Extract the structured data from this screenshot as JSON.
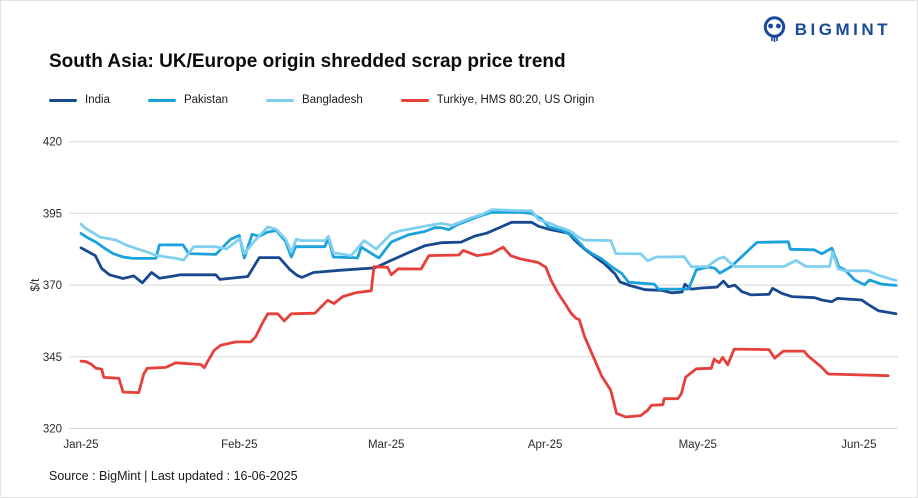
{
  "header": {
    "logo_text": "BIGMINT"
  },
  "footer": {
    "source_line": "Source : BigMint | Last updated : 16-06-2025"
  },
  "chart_data": {
    "type": "line",
    "title": "South Asia: UK/Europe origin shredded scrap price trend",
    "ylabel": "$/t",
    "ylim": [
      320,
      430
    ],
    "y_ticks": [
      420,
      395,
      370,
      345,
      320
    ],
    "grid": "horizontal",
    "legend_position": "top-left",
    "x_unit": "trading-day index from 01-Jan-2025",
    "x_ticks": [
      {
        "d": 0,
        "label": "Jan-25"
      },
      {
        "d": 22.2,
        "label": "Feb-25"
      },
      {
        "d": 42.8,
        "label": "Mar-25"
      },
      {
        "d": 65.1,
        "label": "Apr-25"
      },
      {
        "d": 86.5,
        "label": "May-25"
      },
      {
        "d": 109.1,
        "label": "Jun-25"
      }
    ],
    "series": [
      {
        "name": "India",
        "color": "#17498f",
        "points": [
          [
            0,
            383
          ],
          [
            2,
            380.3
          ],
          [
            2.9,
            375.8
          ],
          [
            4,
            373.6
          ],
          [
            5.9,
            372.3
          ],
          [
            7.4,
            373.2
          ],
          [
            8.6,
            370.8
          ],
          [
            9.9,
            374.4
          ],
          [
            11,
            372.4
          ],
          [
            12.6,
            373
          ],
          [
            14,
            373.6
          ],
          [
            18.9,
            373.6
          ],
          [
            19.5,
            372
          ],
          [
            23.4,
            373
          ],
          [
            25,
            379.6
          ],
          [
            27.8,
            379.6
          ],
          [
            29.3,
            375.4
          ],
          [
            30.3,
            373.4
          ],
          [
            31,
            372.7
          ],
          [
            32.6,
            374.4
          ],
          [
            36.5,
            375.2
          ],
          [
            41.2,
            376
          ],
          [
            43.5,
            378.6
          ],
          [
            46,
            381.4
          ],
          [
            48.2,
            383.7
          ],
          [
            50.5,
            384.8
          ],
          [
            53.3,
            385
          ],
          [
            55.2,
            387.1
          ],
          [
            56.9,
            388.1
          ],
          [
            59,
            390.4
          ],
          [
            60.4,
            391.9
          ],
          [
            63.2,
            391.9
          ],
          [
            64.2,
            390.5
          ],
          [
            65.6,
            389.5
          ],
          [
            67,
            388.8
          ],
          [
            68.4,
            388.1
          ],
          [
            69.2,
            385.8
          ],
          [
            70.6,
            382.6
          ],
          [
            72.1,
            379.8
          ],
          [
            73.4,
            377.5
          ],
          [
            74.9,
            373.9
          ],
          [
            75.6,
            371.1
          ],
          [
            76.8,
            370
          ],
          [
            79.1,
            368.4
          ],
          [
            81.4,
            368.2
          ],
          [
            82.8,
            367.3
          ],
          [
            84.3,
            367.6
          ],
          [
            84.7,
            370.3
          ],
          [
            85.6,
            368.6
          ],
          [
            87.1,
            369
          ],
          [
            89.2,
            369.3
          ],
          [
            90.1,
            371.4
          ],
          [
            90.8,
            369.4
          ],
          [
            91.7,
            370
          ],
          [
            92.7,
            367.7
          ],
          [
            94,
            366.6
          ],
          [
            96.5,
            366.8
          ],
          [
            97,
            368.9
          ],
          [
            98.3,
            367.1
          ],
          [
            99.7,
            366
          ],
          [
            102.9,
            365.6
          ],
          [
            103.9,
            364.8
          ],
          [
            105.3,
            364.2
          ],
          [
            106.1,
            365.4
          ],
          [
            107.1,
            365.2
          ],
          [
            109.5,
            364.8
          ],
          [
            110.5,
            363.1
          ],
          [
            111.9,
            361
          ],
          [
            112.7,
            360.7
          ],
          [
            114.3,
            360
          ]
        ]
      },
      {
        "name": "Pakistan",
        "color": "#1ba2dc",
        "points": [
          [
            0,
            388
          ],
          [
            0.8,
            386.7
          ],
          [
            2.1,
            385
          ],
          [
            3.4,
            382.7
          ],
          [
            4.5,
            381
          ],
          [
            5.9,
            379.8
          ],
          [
            7.3,
            379.3
          ],
          [
            10.5,
            379.3
          ],
          [
            11,
            384
          ],
          [
            14.3,
            384
          ],
          [
            15.1,
            381
          ],
          [
            18.9,
            380.7
          ],
          [
            21,
            386
          ],
          [
            22.2,
            387.3
          ],
          [
            22.9,
            379.5
          ],
          [
            24,
            387.7
          ],
          [
            25,
            387
          ],
          [
            26.2,
            388.5
          ],
          [
            27.4,
            389
          ],
          [
            28.7,
            385.2
          ],
          [
            29.5,
            379.8
          ],
          [
            30.1,
            383.4
          ],
          [
            34.2,
            383.4
          ],
          [
            34.7,
            386.4
          ],
          [
            35.4,
            379.8
          ],
          [
            38.8,
            379.5
          ],
          [
            39.3,
            383.3
          ],
          [
            41.2,
            380.3
          ],
          [
            41.8,
            379.5
          ],
          [
            43.5,
            385
          ],
          [
            46,
            387.6
          ],
          [
            48.2,
            388.7
          ],
          [
            49.6,
            390
          ],
          [
            50.5,
            390
          ],
          [
            51.6,
            389.3
          ],
          [
            52.7,
            391
          ],
          [
            54.8,
            393
          ],
          [
            56.2,
            394.3
          ],
          [
            57.6,
            395.4
          ],
          [
            61.8,
            395.4
          ],
          [
            63.2,
            395
          ],
          [
            64.6,
            393
          ],
          [
            65.6,
            390.3
          ],
          [
            67.4,
            389.1
          ],
          [
            68.8,
            387.4
          ],
          [
            69.8,
            385.1
          ],
          [
            70.6,
            382.8
          ],
          [
            71.6,
            381.1
          ],
          [
            73,
            379.2
          ],
          [
            74.4,
            376.4
          ],
          [
            75.8,
            374.1
          ],
          [
            76.8,
            371
          ],
          [
            80.4,
            370.3
          ],
          [
            81,
            368.6
          ],
          [
            85.2,
            368.6
          ],
          [
            86.3,
            375.3
          ],
          [
            88,
            376.3
          ],
          [
            88.9,
            375.9
          ],
          [
            89.6,
            374.2
          ],
          [
            91.2,
            376.5
          ],
          [
            93.8,
            382.6
          ],
          [
            94.8,
            384.9
          ],
          [
            99.2,
            385.1
          ],
          [
            99.5,
            382.5
          ],
          [
            102.8,
            382.3
          ],
          [
            103.9,
            380.9
          ],
          [
            105.3,
            382.9
          ],
          [
            106.3,
            376.3
          ],
          [
            107.1,
            375.4
          ],
          [
            108.5,
            371.8
          ],
          [
            109.5,
            370.6
          ],
          [
            109.9,
            370.1
          ],
          [
            110.6,
            371.8
          ],
          [
            112.3,
            370.3
          ],
          [
            114.3,
            369.9
          ]
        ]
      },
      {
        "name": "Bangladesh",
        "color": "#7fd0f0",
        "points": [
          [
            0,
            391.3
          ],
          [
            0.4,
            390.2
          ],
          [
            1.5,
            388.5
          ],
          [
            2.7,
            386.7
          ],
          [
            3.9,
            386.2
          ],
          [
            5,
            385.6
          ],
          [
            6.4,
            383.9
          ],
          [
            7.8,
            382.7
          ],
          [
            9.2,
            381.6
          ],
          [
            10.5,
            380.4
          ],
          [
            12,
            379.8
          ],
          [
            13.3,
            379.3
          ],
          [
            14.4,
            378.7
          ],
          [
            15.8,
            383.4
          ],
          [
            18.9,
            383.4
          ],
          [
            20.4,
            382.6
          ],
          [
            22.3,
            386.2
          ],
          [
            22.9,
            381
          ],
          [
            24.2,
            385
          ],
          [
            26.2,
            390.3
          ],
          [
            27.4,
            389.4
          ],
          [
            28.7,
            386
          ],
          [
            29.5,
            381.5
          ],
          [
            30.2,
            386
          ],
          [
            30.9,
            385.5
          ],
          [
            34.2,
            385.5
          ],
          [
            34.7,
            387
          ],
          [
            35.4,
            381.3
          ],
          [
            37.9,
            380.3
          ],
          [
            39.7,
            385.5
          ],
          [
            41.4,
            382.6
          ],
          [
            43.5,
            387.9
          ],
          [
            44.9,
            389
          ],
          [
            48.2,
            390.5
          ],
          [
            50.5,
            391.5
          ],
          [
            52,
            390.8
          ],
          [
            54.8,
            393.5
          ],
          [
            56.2,
            394.6
          ],
          [
            57.6,
            396.3
          ],
          [
            61,
            396
          ],
          [
            63.2,
            395.9
          ],
          [
            64.2,
            392.8
          ],
          [
            65,
            392.1
          ],
          [
            65.9,
            391.4
          ],
          [
            66.9,
            390.3
          ],
          [
            67.8,
            389.7
          ],
          [
            68.8,
            388.6
          ],
          [
            69.7,
            386.8
          ],
          [
            70.6,
            385.7
          ],
          [
            74.3,
            385.5
          ],
          [
            75,
            381
          ],
          [
            78.5,
            380.9
          ],
          [
            79.5,
            378.5
          ],
          [
            80.7,
            379.8
          ],
          [
            84.6,
            379.9
          ],
          [
            85.6,
            376.4
          ],
          [
            87.9,
            376.4
          ],
          [
            88.4,
            377.5
          ],
          [
            89.4,
            379.2
          ],
          [
            90.2,
            379.8
          ],
          [
            90.8,
            378.3
          ],
          [
            91.7,
            376.5
          ],
          [
            98.6,
            376.5
          ],
          [
            100.3,
            378.6
          ],
          [
            101.7,
            376.5
          ],
          [
            105,
            376.5
          ],
          [
            105.4,
            381.5
          ],
          [
            106.2,
            375.7
          ],
          [
            107.2,
            375
          ],
          [
            110.4,
            375
          ],
          [
            111.8,
            373.5
          ],
          [
            113.2,
            372.4
          ],
          [
            114.3,
            371.6
          ]
        ]
      },
      {
        "name": "Turkiye, HMS 80:20, US Origin",
        "color": "#e6403a",
        "points": [
          [
            0,
            343.5
          ],
          [
            0.7,
            343.3
          ],
          [
            1.4,
            342.5
          ],
          [
            2.1,
            341
          ],
          [
            2.9,
            340.7
          ],
          [
            3.2,
            337.8
          ],
          [
            5.3,
            337.5
          ],
          [
            5.9,
            332.7
          ],
          [
            8.1,
            332.5
          ],
          [
            8.8,
            339
          ],
          [
            9.3,
            341
          ],
          [
            11.9,
            341.3
          ],
          [
            13.3,
            342.9
          ],
          [
            16.8,
            342.3
          ],
          [
            17.3,
            341.2
          ],
          [
            17.8,
            343.5
          ],
          [
            18.7,
            347.3
          ],
          [
            19.6,
            349
          ],
          [
            21.7,
            350.2
          ],
          [
            23.8,
            350.2
          ],
          [
            24.5,
            352
          ],
          [
            25.5,
            357
          ],
          [
            26.2,
            360
          ],
          [
            27.6,
            360
          ],
          [
            28.5,
            357.5
          ],
          [
            29.5,
            360
          ],
          [
            32.8,
            360.2
          ],
          [
            34.6,
            364.7
          ],
          [
            35.5,
            363.6
          ],
          [
            36.7,
            366
          ],
          [
            38.6,
            367.4
          ],
          [
            40.7,
            368
          ],
          [
            41.1,
            376.4
          ],
          [
            43,
            376.2
          ],
          [
            43.5,
            373.6
          ],
          [
            44.5,
            375.7
          ],
          [
            47.7,
            375.6
          ],
          [
            48.8,
            380.3
          ],
          [
            53,
            380.5
          ],
          [
            53.6,
            382.1
          ],
          [
            55.5,
            380.3
          ],
          [
            57.5,
            381
          ],
          [
            59.2,
            383.2
          ],
          [
            60.3,
            380.2
          ],
          [
            61.7,
            379.1
          ],
          [
            64.1,
            377.9
          ],
          [
            65.2,
            376.2
          ],
          [
            65.9,
            371.8
          ],
          [
            66.9,
            367.2
          ],
          [
            67.8,
            363.9
          ],
          [
            68.7,
            360.3
          ],
          [
            69.4,
            358.5
          ],
          [
            69.9,
            357.9
          ],
          [
            70.6,
            352.2
          ],
          [
            73,
            338.4
          ],
          [
            74.3,
            333.3
          ],
          [
            75.1,
            325.3
          ],
          [
            76.4,
            324
          ],
          [
            78.5,
            324.5
          ],
          [
            79.5,
            326.4
          ],
          [
            80,
            328.1
          ],
          [
            81.6,
            328.3
          ],
          [
            81.8,
            330.4
          ],
          [
            83.7,
            330.4
          ],
          [
            84.2,
            332.1
          ],
          [
            84.8,
            337.9
          ],
          [
            86.3,
            340.8
          ],
          [
            88.4,
            341
          ],
          [
            88.8,
            344.2
          ],
          [
            89.5,
            342.9
          ],
          [
            90,
            344.8
          ],
          [
            90.7,
            342.2
          ],
          [
            91.6,
            347.7
          ],
          [
            96.5,
            347.5
          ],
          [
            97.3,
            344.5
          ],
          [
            98.5,
            347
          ],
          [
            101.4,
            347
          ],
          [
            102,
            345.2
          ],
          [
            102.8,
            343.6
          ],
          [
            103.8,
            341.5
          ],
          [
            104.8,
            339
          ],
          [
            113.2,
            338.4
          ]
        ]
      }
    ]
  }
}
